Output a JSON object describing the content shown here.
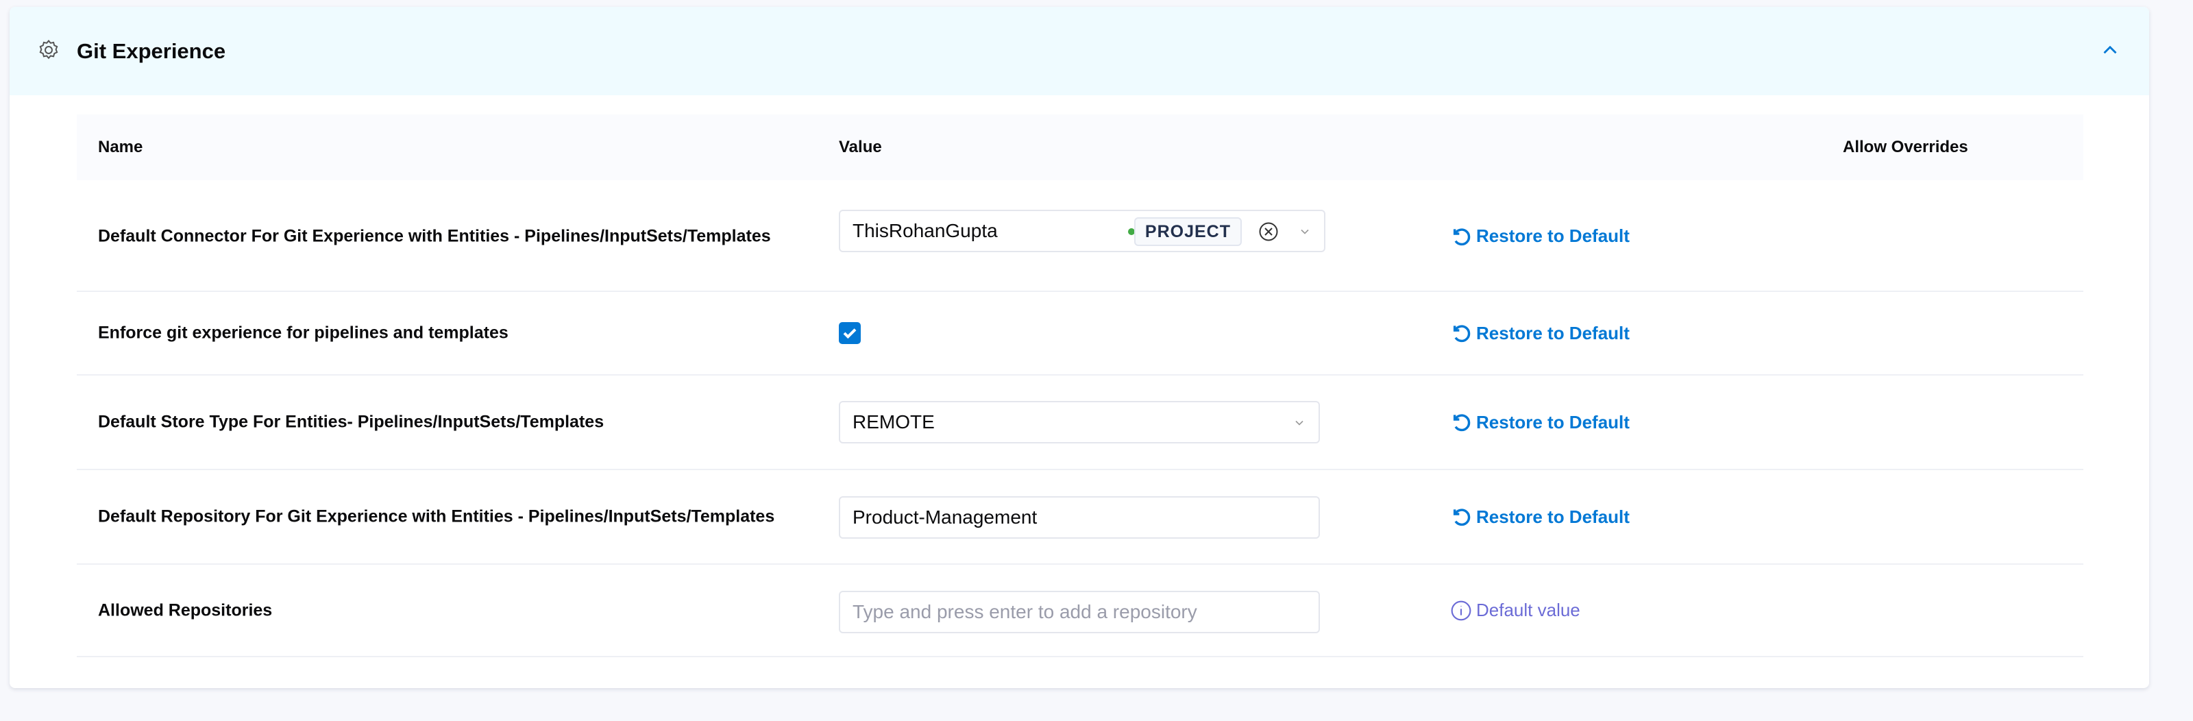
{
  "section": {
    "title": "Git Experience",
    "icon": "gear-icon",
    "collapse_icon": "chevron-up-icon"
  },
  "columns": {
    "name": "Name",
    "value": "Value",
    "overrides": "Allow Overrides"
  },
  "rows": [
    {
      "name": "Default Connector For Git Experience with Entities - Pipelines/InputSets/Templates",
      "value": "ThisRohanGupta",
      "scope": "PROJECT",
      "status_color": "#42ab45",
      "action": "Restore to Default"
    },
    {
      "name": "Enforce git experience for pipelines and templates",
      "checked": true,
      "action": "Restore to Default"
    },
    {
      "name": "Default Store Type For Entities- Pipelines/InputSets/Templates",
      "value": "REMOTE",
      "action": "Restore to Default"
    },
    {
      "name": "Default Repository For Git Experience with Entities - Pipelines/InputSets/Templates",
      "value": "Product-Management",
      "action": "Restore to Default"
    },
    {
      "name": "Allowed Repositories",
      "placeholder": "Type and press enter to add a repository",
      "action": "Default value"
    }
  ],
  "colors": {
    "accent": "#0278d5",
    "header_bg": "#effbff",
    "default_value": "#6b6bd6"
  }
}
